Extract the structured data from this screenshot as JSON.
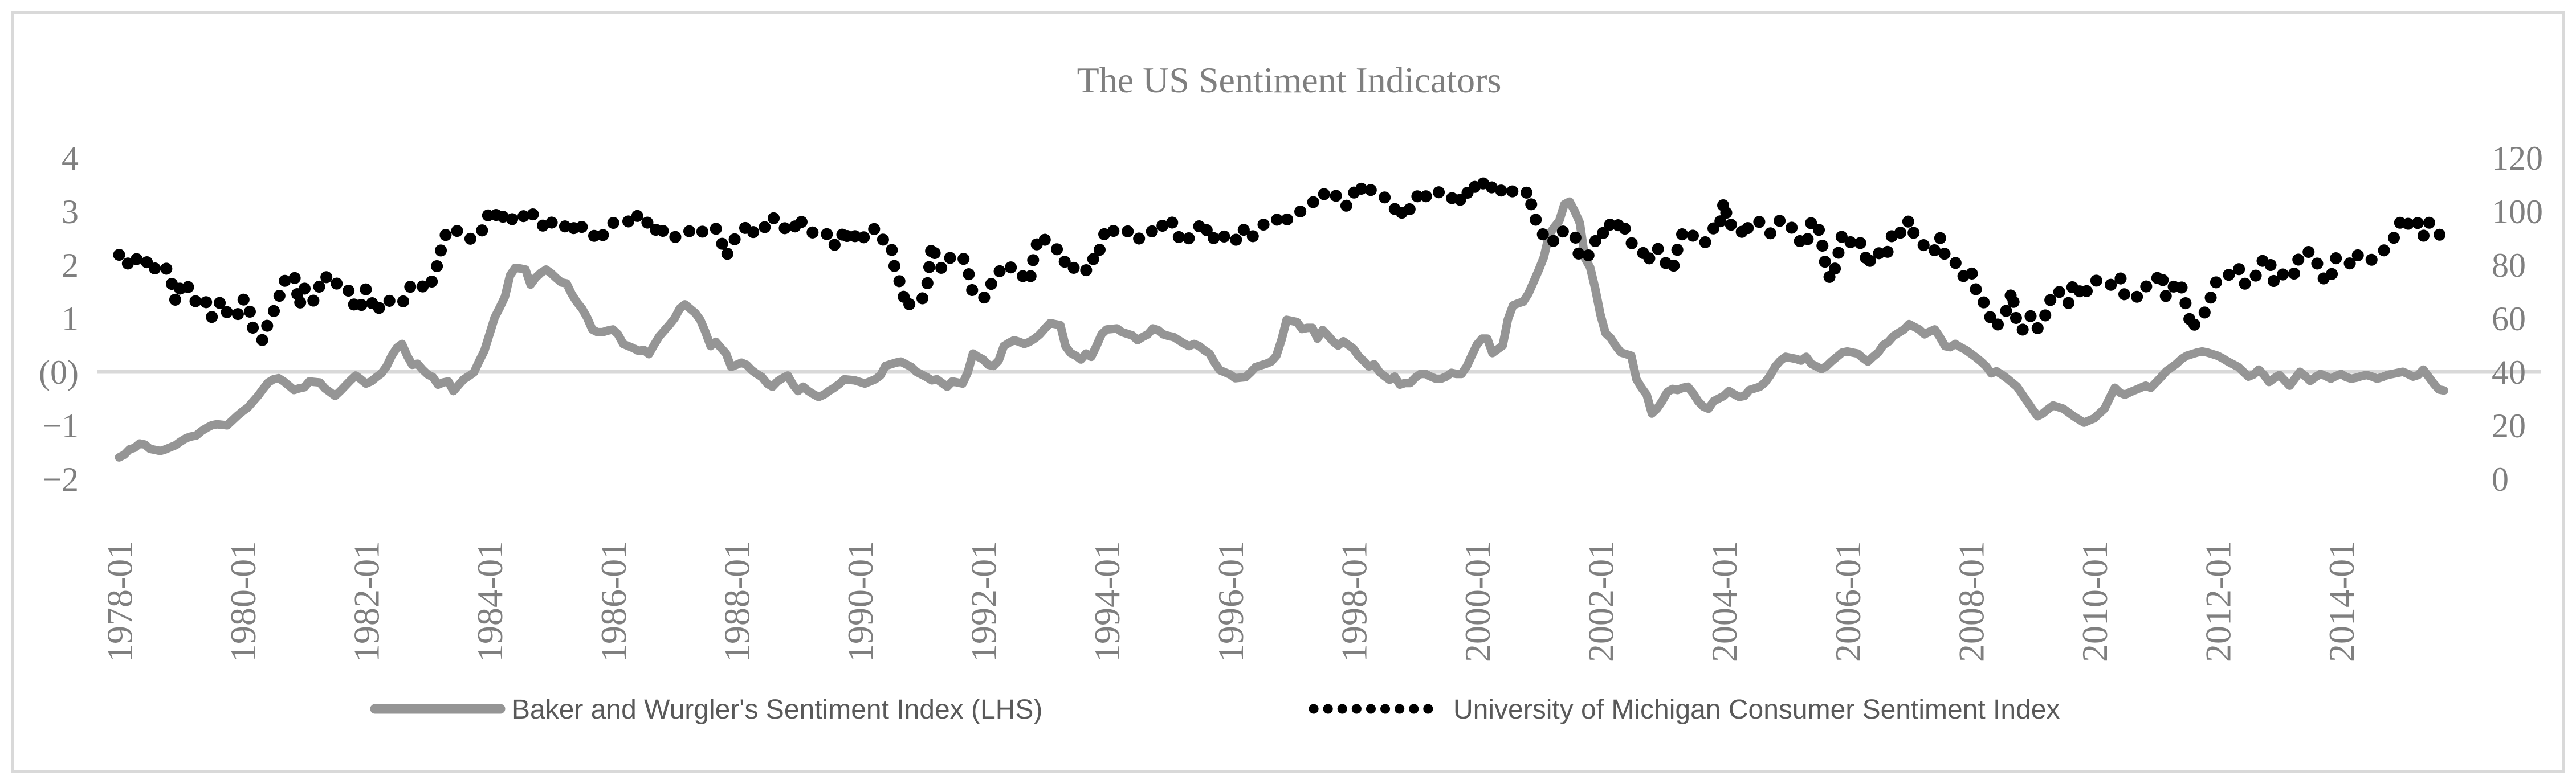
{
  "title": "The US Sentiment Indicators",
  "left_axis": {
    "labels": [
      "4",
      "3",
      "2",
      "1",
      "(0)",
      "−1",
      "−2"
    ],
    "values": [
      4,
      3,
      2,
      1,
      0,
      -1,
      -2
    ]
  },
  "right_axis": {
    "labels": [
      "120",
      "100",
      "80",
      "60",
      "40",
      "20",
      "0"
    ],
    "values": [
      120,
      100,
      80,
      60,
      40,
      20,
      0
    ]
  },
  "x_axis": {
    "labels": [
      "1978-01",
      "1980-01",
      "1982-01",
      "1984-01",
      "1986-01",
      "1988-01",
      "1990-01",
      "1992-01",
      "1994-01",
      "1996-01",
      "1998-01",
      "2000-01",
      "2002-01",
      "2004-01",
      "2006-01",
      "2008-01",
      "2010-01",
      "2012-01",
      "2014-01"
    ]
  },
  "legend": [
    {
      "label": "Baker and Wurgler's Sentiment Index (LHS)",
      "style": "solid",
      "color": "#959595"
    },
    {
      "label": "University of Michigan Consumer Sentiment Index",
      "style": "dotted",
      "color": "#000000"
    }
  ],
  "colors": {
    "title": "#7f7f7f",
    "tick_labels": "#7f7f7f",
    "gridline": "#d9d9d9",
    "frame": "#d9d9d9",
    "bw_line": "#959595",
    "michigan_line": "#000000",
    "legend_text": "#595959",
    "background": "#ffffff"
  },
  "chart_data": {
    "type": "line",
    "title": "The US Sentiment Indicators",
    "x_start": "1978-01",
    "x_end": "2015-09",
    "x_interval": "monthly",
    "x_tick_labels": [
      "1978-01",
      "1980-01",
      "1982-01",
      "1984-01",
      "1986-01",
      "1988-01",
      "1990-01",
      "1992-01",
      "1994-01",
      "1996-01",
      "1998-01",
      "2000-01",
      "2002-01",
      "2004-01",
      "2006-01",
      "2008-01",
      "2010-01",
      "2012-01",
      "2014-01"
    ],
    "left_ylim": [
      -2,
      4
    ],
    "right_ylim": [
      0,
      120
    ],
    "grid": "horizontal zero-line only",
    "legend_position": "bottom",
    "series": [
      {
        "name": "Baker and Wurgler's Sentiment Index (LHS)",
        "axis": "left",
        "line_style": "solid thick",
        "values": [
          -1.6,
          -1.55,
          -1.45,
          -1.42,
          -1.34,
          -1.36,
          -1.44,
          -1.46,
          -1.48,
          -1.45,
          -1.41,
          -1.37,
          -1.3,
          -1.24,
          -1.21,
          -1.19,
          -1.11,
          -1.05,
          -1.0,
          -0.98,
          -0.99,
          -1.0,
          -0.91,
          -0.82,
          -0.74,
          -0.67,
          -0.56,
          -0.45,
          -0.32,
          -0.2,
          -0.14,
          -0.12,
          -0.18,
          -0.26,
          -0.34,
          -0.31,
          -0.29,
          -0.18,
          -0.19,
          -0.2,
          -0.31,
          -0.38,
          -0.45,
          -0.36,
          -0.26,
          -0.16,
          -0.07,
          -0.14,
          -0.22,
          -0.18,
          -0.1,
          -0.03,
          0.1,
          0.3,
          0.45,
          0.52,
          0.3,
          0.13,
          0.15,
          0.04,
          -0.05,
          -0.1,
          -0.24,
          -0.2,
          -0.18,
          -0.36,
          -0.25,
          -0.14,
          -0.08,
          -0.01,
          0.2,
          0.39,
          0.7,
          1.01,
          1.2,
          1.4,
          1.8,
          1.94,
          1.93,
          1.91,
          1.63,
          1.76,
          1.85,
          1.91,
          1.84,
          1.75,
          1.67,
          1.65,
          1.45,
          1.3,
          1.18,
          1.01,
          0.79,
          0.74,
          0.74,
          0.77,
          0.79,
          0.7,
          0.52,
          0.48,
          0.44,
          0.39,
          0.41,
          0.33,
          0.5,
          0.66,
          0.77,
          0.88,
          1.0,
          1.18,
          1.26,
          1.18,
          1.1,
          0.97,
          0.74,
          0.48,
          0.56,
          0.45,
          0.34,
          0.09,
          0.13,
          0.17,
          0.13,
          0.03,
          -0.04,
          -0.1,
          -0.22,
          -0.28,
          -0.18,
          -0.12,
          -0.07,
          -0.24,
          -0.36,
          -0.28,
          -0.36,
          -0.42,
          -0.47,
          -0.43,
          -0.36,
          -0.3,
          -0.23,
          -0.14,
          -0.15,
          -0.16,
          -0.19,
          -0.22,
          -0.18,
          -0.14,
          -0.07,
          0.11,
          0.14,
          0.17,
          0.19,
          0.14,
          0.09,
          0.0,
          -0.05,
          -0.1,
          -0.16,
          -0.14,
          -0.21,
          -0.28,
          -0.18,
          -0.2,
          -0.22,
          -0.01,
          0.34,
          0.28,
          0.23,
          0.13,
          0.11,
          0.21,
          0.48,
          0.54,
          0.59,
          0.56,
          0.52,
          0.56,
          0.62,
          0.7,
          0.81,
          0.91,
          0.89,
          0.87,
          0.48,
          0.35,
          0.3,
          0.23,
          0.34,
          0.28,
          0.48,
          0.7,
          0.79,
          0.8,
          0.81,
          0.74,
          0.71,
          0.68,
          0.59,
          0.65,
          0.7,
          0.81,
          0.78,
          0.7,
          0.67,
          0.65,
          0.59,
          0.53,
          0.48,
          0.52,
          0.48,
          0.4,
          0.34,
          0.17,
          0.03,
          -0.01,
          -0.05,
          -0.12,
          -0.11,
          -0.1,
          -0.01,
          0.09,
          0.12,
          0.15,
          0.19,
          0.3,
          0.6,
          0.97,
          0.95,
          0.93,
          0.8,
          0.82,
          0.82,
          0.62,
          0.78,
          0.68,
          0.57,
          0.49,
          0.57,
          0.5,
          0.43,
          0.29,
          0.2,
          0.1,
          0.14,
          0.0,
          -0.08,
          -0.15,
          -0.09,
          -0.24,
          -0.21,
          -0.21,
          -0.11,
          -0.04,
          -0.04,
          -0.09,
          -0.13,
          -0.13,
          -0.09,
          -0.02,
          -0.04,
          -0.04,
          0.1,
          0.31,
          0.51,
          0.62,
          0.62,
          0.35,
          0.42,
          0.49,
          0.98,
          1.24,
          1.28,
          1.31,
          1.46,
          1.68,
          1.9,
          2.14,
          2.56,
          2.7,
          2.82,
          3.13,
          3.18,
          3.0,
          2.78,
          2.12,
          1.95,
          1.55,
          1.07,
          0.72,
          0.63,
          0.48,
          0.36,
          0.33,
          0.3,
          -0.14,
          -0.3,
          -0.43,
          -0.78,
          -0.69,
          -0.55,
          -0.38,
          -0.32,
          -0.34,
          -0.3,
          -0.28,
          -0.4,
          -0.55,
          -0.65,
          -0.69,
          -0.55,
          -0.5,
          -0.45,
          -0.36,
          -0.42,
          -0.47,
          -0.45,
          -0.34,
          -0.31,
          -0.28,
          -0.2,
          -0.07,
          0.1,
          0.21,
          0.28,
          0.26,
          0.24,
          0.21,
          0.28,
          0.15,
          0.1,
          0.05,
          0.11,
          0.2,
          0.28,
          0.36,
          0.38,
          0.36,
          0.34,
          0.26,
          0.19,
          0.28,
          0.36,
          0.5,
          0.56,
          0.67,
          0.73,
          0.79,
          0.89,
          0.84,
          0.79,
          0.7,
          0.75,
          0.79,
          0.65,
          0.48,
          0.46,
          0.52,
          0.46,
          0.41,
          0.34,
          0.27,
          0.19,
          0.1,
          -0.03,
          0.01,
          -0.05,
          -0.12,
          -0.2,
          -0.28,
          -0.42,
          -0.56,
          -0.7,
          -0.83,
          -0.78,
          -0.7,
          -0.63,
          -0.66,
          -0.69,
          -0.76,
          -0.83,
          -0.89,
          -0.95,
          -0.91,
          -0.87,
          -0.78,
          -0.69,
          -0.49,
          -0.3,
          -0.39,
          -0.43,
          -0.38,
          -0.34,
          -0.3,
          -0.26,
          -0.3,
          -0.2,
          -0.1,
          0.01,
          0.08,
          0.15,
          0.24,
          0.3,
          0.33,
          0.36,
          0.38,
          0.36,
          0.33,
          0.3,
          0.25,
          0.19,
          0.14,
          0.09,
          0.0,
          -0.09,
          -0.05,
          0.04,
          -0.06,
          -0.19,
          -0.12,
          -0.06,
          -0.16,
          -0.26,
          -0.13,
          0.0,
          -0.08,
          -0.17,
          -0.1,
          -0.04,
          -0.08,
          -0.13,
          -0.08,
          -0.04,
          -0.1,
          -0.13,
          -0.11,
          -0.08,
          -0.06,
          -0.09,
          -0.13,
          -0.1,
          -0.06,
          -0.04,
          -0.02,
          0.0,
          -0.04,
          -0.09,
          -0.06,
          0.04,
          -0.09,
          -0.22,
          -0.33,
          -0.35
        ]
      },
      {
        "name": "University of Michigan Consumer Sentiment Index",
        "axis": "right",
        "line_style": "round-dotted",
        "values": [
          83.7,
          84.3,
          78.8,
          81.6,
          82.9,
          80.0,
          82.4,
          78.4,
          80.4,
          79.3,
          75.0,
          66.1,
          72.1,
          73.9,
          68.4,
          66.0,
          68.1,
          65.8,
          60.4,
          64.5,
          66.7,
          62.1,
          63.3,
          61.0,
          67.0,
          66.9,
          56.5,
          52.7,
          51.7,
          58.7,
          62.3,
          67.3,
          73.7,
          75.0,
          76.7,
          64.5,
          71.4,
          66.9,
          66.5,
          72.4,
          76.3,
          73.1,
          74.1,
          70.3,
          70.3,
          70.3,
          62.5,
          64.3,
          71.0,
          66.5,
          62.0,
          65.5,
          67.5,
          65.7,
          65.4,
          65.4,
          69.3,
          73.4,
          72.1,
          71.9,
          70.4,
          74.6,
          80.8,
          89.1,
          93.3,
          92.2,
          92.8,
          90.9,
          89.9,
          89.3,
          91.1,
          94.2,
          100.1,
          97.6,
          101.0,
          96.1,
          98.1,
          95.5,
          96.6,
          99.1,
          100.9,
          96.3,
          95.7,
          92.9,
          96.0,
          93.7,
          93.7,
          94.6,
          91.8,
          96.5,
          94.0,
          92.4,
          92.1,
          88.4,
          90.9,
          93.8,
          95.6,
          95.9,
          95.1,
          96.2,
          94.8,
          99.3,
          97.7,
          94.9,
          91.8,
          95.6,
          91.4,
          89.9,
          90.4,
          90.2,
          90.8,
          92.8,
          91.1,
          91.5,
          93.7,
          94.4,
          93.6,
          89.3,
          83.1,
          86.8,
          90.8,
          91.6,
          94.6,
          91.2,
          94.8,
          94.7,
          93.4,
          97.4,
          97.3,
          94.1,
          93.0,
          91.9,
          97.9,
          95.1,
          94.6,
          91.5,
          90.7,
          90.6,
          92.0,
          87.5,
          87.1,
          93.9,
          88.1,
          90.5,
          93.0,
          89.5,
          91.3,
          93.9,
          90.6,
          88.3,
          88.2,
          76.4,
          72.8,
          63.9,
          66.0,
          65.5,
          66.8,
          70.4,
          87.7,
          81.8,
          78.3,
          82.1,
          82.9,
          82.0,
          83.0,
          78.3,
          69.1,
          68.2,
          67.5,
          68.8,
          76.0,
          77.2,
          79.2,
          80.4,
          76.6,
          76.1,
          75.6,
          73.3,
          85.3,
          91.0,
          89.3,
          86.6,
          85.9,
          85.6,
          80.3,
          81.5,
          77.0,
          77.1,
          77.9,
          82.7,
          81.2,
          88.2,
          94.3,
          93.2,
          91.5,
          92.6,
          92.6,
          91.2,
          89.0,
          91.7,
          91.5,
          92.7,
          91.6,
          95.1,
          97.6,
          95.1,
          90.3,
          92.5,
          89.8,
          92.7,
          94.4,
          96.2,
          88.9,
          90.2,
          88.2,
          91.0,
          89.3,
          88.5,
          93.7,
          92.7,
          89.4,
          92.4,
          94.7,
          95.3,
          94.7,
          96.5,
          99.2,
          96.9,
          97.4,
          99.7,
          100.0,
          101.4,
          103.2,
          104.5,
          107.1,
          104.4,
          106.0,
          105.6,
          102.0,
          102.1,
          106.6,
          110.4,
          106.5,
          108.7,
          106.5,
          105.6,
          105.2,
          104.4,
          100.9,
          97.4,
          102.7,
          100.5,
          103.9,
          108.1,
          105.7,
          104.6,
          106.8,
          107.3,
          106.0,
          104.5,
          107.2,
          103.2,
          107.2,
          105.4,
          112.0,
          111.3,
          107.1,
          109.2,
          110.7,
          106.4,
          108.3,
          107.3,
          106.8,
          105.8,
          107.6,
          98.4,
          94.7,
          90.6,
          91.5,
          88.4,
          92.0,
          92.6,
          92.4,
          91.5,
          81.8,
          82.7,
          83.9,
          88.8,
          93.0,
          90.7,
          95.7,
          93.0,
          96.9,
          92.4,
          88.1,
          87.6,
          86.1,
          80.6,
          84.2,
          86.7,
          82.4,
          79.9,
          77.6,
          86.0,
          92.1,
          89.7,
          90.9,
          89.3,
          87.7,
          89.6,
          93.7,
          92.6,
          103.8,
          94.4,
          95.8,
          94.2,
          90.2,
          95.6,
          96.7,
          95.9,
          94.2,
          91.7,
          92.8,
          97.1,
          95.5,
          94.1,
          92.6,
          87.7,
          86.9,
          96.0,
          96.5,
          89.1,
          76.9,
          74.2,
          81.6,
          91.5,
          91.2,
          86.7,
          88.9,
          87.4,
          79.1,
          84.9,
          84.7,
          82.0,
          85.4,
          93.6,
          92.1,
          91.7,
          96.9,
          91.3,
          88.4,
          87.1,
          88.3,
          85.3,
          90.4,
          83.4,
          83.4,
          80.9,
          76.1,
          75.5,
          78.4,
          70.8,
          69.5,
          62.6,
          59.8,
          56.4,
          61.2,
          63.0,
          70.3,
          57.6,
          55.3,
          60.1,
          61.2,
          56.3,
          57.3,
          65.1,
          68.7,
          70.8,
          66.0,
          65.7,
          73.5,
          70.6,
          67.4,
          72.5,
          74.4,
          73.6,
          73.6,
          72.2,
          73.6,
          76.0,
          67.8,
          68.9,
          68.2,
          67.7,
          71.6,
          74.5,
          74.2,
          77.5,
          67.5,
          69.8,
          74.3,
          71.5,
          63.7,
          55.8,
          59.5,
          60.8,
          63.7,
          69.9,
          75.0,
          75.3,
          76.2,
          76.4,
          79.3,
          73.2,
          72.3,
          74.3,
          78.3,
          82.6,
          82.7,
          72.9,
          73.8,
          77.6,
          78.6,
          76.4,
          84.5,
          84.1,
          85.1,
          82.1,
          77.5,
          73.2,
          75.1,
          82.5,
          81.2,
          81.6,
          80.0,
          84.1,
          81.9,
          82.5,
          81.8,
          82.5,
          84.6,
          86.9,
          88.8,
          93.6,
          98.1,
          95.4,
          93.0,
          95.9,
          90.7,
          96.1,
          93.1,
          91.9,
          87.2
        ]
      }
    ]
  }
}
